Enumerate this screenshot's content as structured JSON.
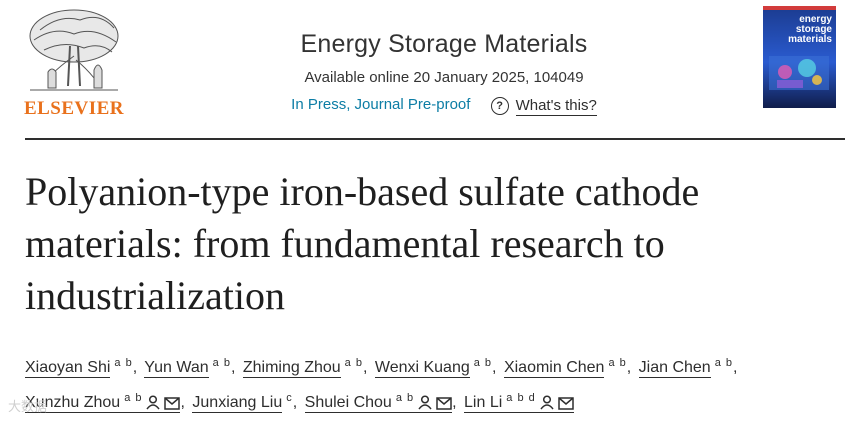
{
  "publisher": {
    "logo_text": "ELSEVIER"
  },
  "journal": {
    "title": "Energy Storage Materials",
    "availability": "Available online 20 January 2025, 104049",
    "status_link": "In Press, Journal Pre-proof",
    "whats_this": "What's this?",
    "cover_title": "energy storage materials"
  },
  "article": {
    "title": "Polyanion-type iron-based sulfate cathode materials: from fundamental research to industrialization"
  },
  "authors": [
    {
      "name": "Xiaoyan Shi",
      "aff": "a b"
    },
    {
      "name": "Yun Wan",
      "aff": "a b"
    },
    {
      "name": "Zhiming Zhou",
      "aff": "a b"
    },
    {
      "name": "Wenxi Kuang",
      "aff": "a b"
    },
    {
      "name": "Xiaomin Chen",
      "aff": "a b"
    },
    {
      "name": "Jian Chen",
      "aff": "a b"
    },
    {
      "name": "Xunzhu Zhou",
      "aff": "a b"
    },
    {
      "name": "Junxiang Liu",
      "aff": "c"
    },
    {
      "name": "Shulei Chou",
      "aff": "a b"
    },
    {
      "name": "Lin Li",
      "aff": "a b d"
    }
  ],
  "watermark": {
    "text": "大数据"
  },
  "colors": {
    "accent": "#0c7da5",
    "elsevier_orange": "#e9711c",
    "text": "#2e2e2e"
  },
  "icons": {
    "help": "question-circle-icon",
    "person": "person-icon",
    "email": "envelope-icon"
  }
}
